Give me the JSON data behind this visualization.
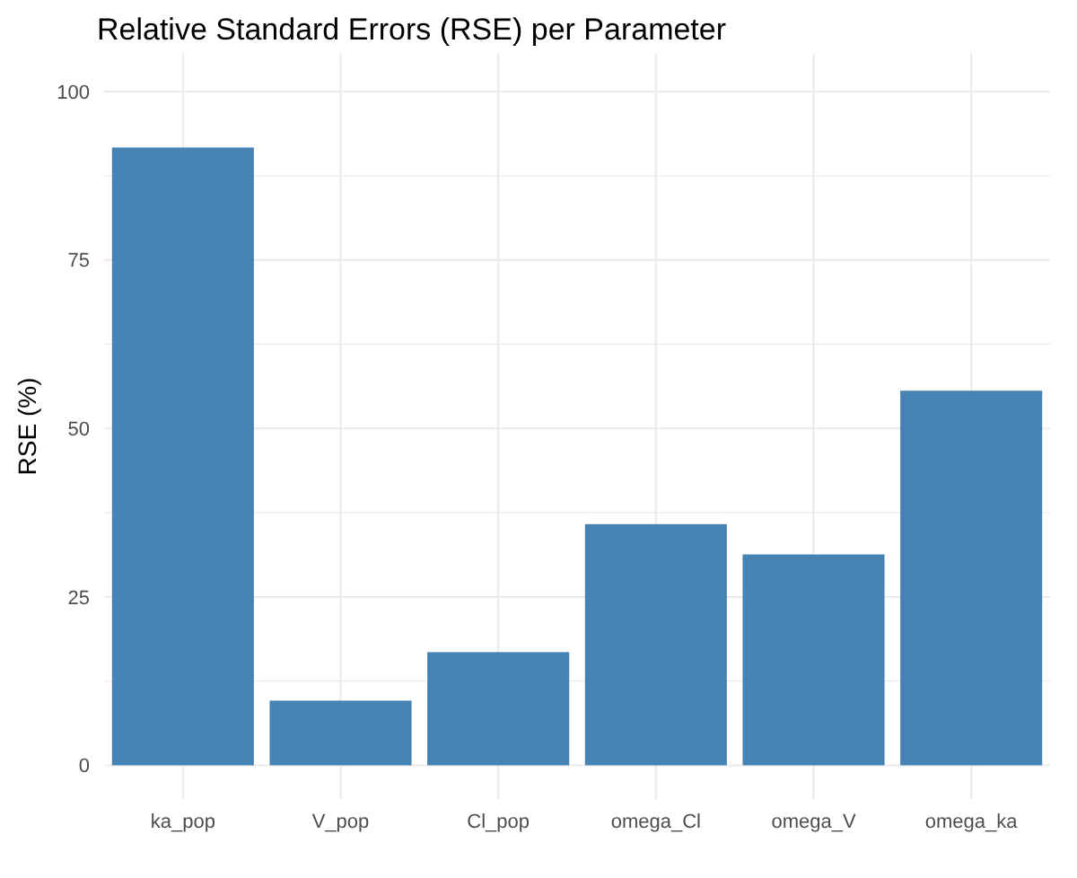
{
  "chart_data": {
    "type": "bar",
    "title": "Relative Standard Errors (RSE) per Parameter",
    "ylabel": "RSE (%)",
    "categories": [
      "ka_pop",
      "V_pop",
      "Cl_pop",
      "omega_Cl",
      "omega_V",
      "omega_ka"
    ],
    "values": [
      91.7,
      9.6,
      16.8,
      35.8,
      31.3,
      55.6
    ],
    "color": "#4682b4",
    "ylim": [
      -5,
      105.6
    ],
    "yticks": [
      0,
      {
        "value": 12.5,
        "label": null
      },
      25,
      {
        "value": 37.5,
        "label": null
      },
      50,
      {
        "value": 62.5,
        "label": null
      },
      75,
      {
        "value": 87.5,
        "label": null
      },
      100
    ],
    "grid": true
  }
}
